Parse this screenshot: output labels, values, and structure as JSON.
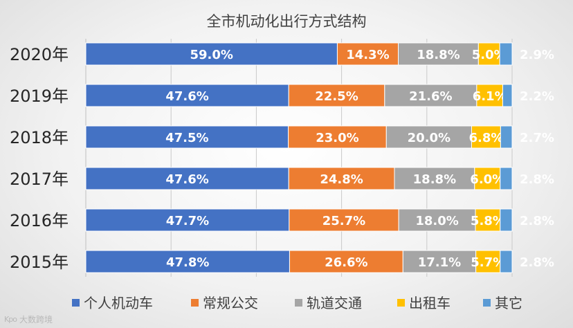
{
  "chart_data": {
    "type": "bar",
    "orientation": "horizontal",
    "stacked": true,
    "title": "全市机动化出行方式结构",
    "categories": [
      "2020年",
      "2019年",
      "2018年",
      "2017年",
      "2016年",
      "2015年"
    ],
    "series": [
      {
        "name": "个人机动车",
        "color": "#4472c4",
        "values": [
          59.0,
          47.6,
          47.5,
          47.6,
          47.7,
          47.8
        ],
        "labels": [
          "59.0%",
          "47.6%",
          "47.5%",
          "47.6%",
          "47.7%",
          "47.8%"
        ]
      },
      {
        "name": "常规公交",
        "color": "#ed7d31",
        "values": [
          14.3,
          22.5,
          23.0,
          24.8,
          25.7,
          26.6
        ],
        "labels": [
          "14.3%",
          "22.5%",
          "23.0%",
          "24.8%",
          "25.7%",
          "26.6%"
        ]
      },
      {
        "name": "轨道交通",
        "color": "#a5a5a5",
        "values": [
          18.8,
          21.6,
          20.0,
          18.8,
          18.0,
          17.1
        ],
        "labels": [
          "18.8%",
          "21.6%",
          "20.0%",
          "18.8%",
          "18.0%",
          "17.1%"
        ]
      },
      {
        "name": "出租车",
        "color": "#ffc000",
        "values": [
          5.0,
          6.1,
          6.8,
          6.0,
          5.8,
          5.7
        ],
        "labels": [
          "5.0%",
          "6.1%",
          "6.8%",
          "6.0%",
          "5.8%",
          "5.7%"
        ]
      },
      {
        "name": "其它",
        "color": "#5b9bd5",
        "values": [
          2.9,
          2.2,
          2.7,
          2.8,
          2.8,
          2.8
        ],
        "labels": [
          "2.9%",
          "2.2%",
          "2.7%",
          "2.8%",
          "2.8%",
          "2.8%"
        ]
      }
    ],
    "xlim": [
      0,
      100
    ],
    "grid": true,
    "legend": "bottom"
  },
  "watermark": {
    "text": "大数跨境",
    "logo": "Kpo"
  }
}
